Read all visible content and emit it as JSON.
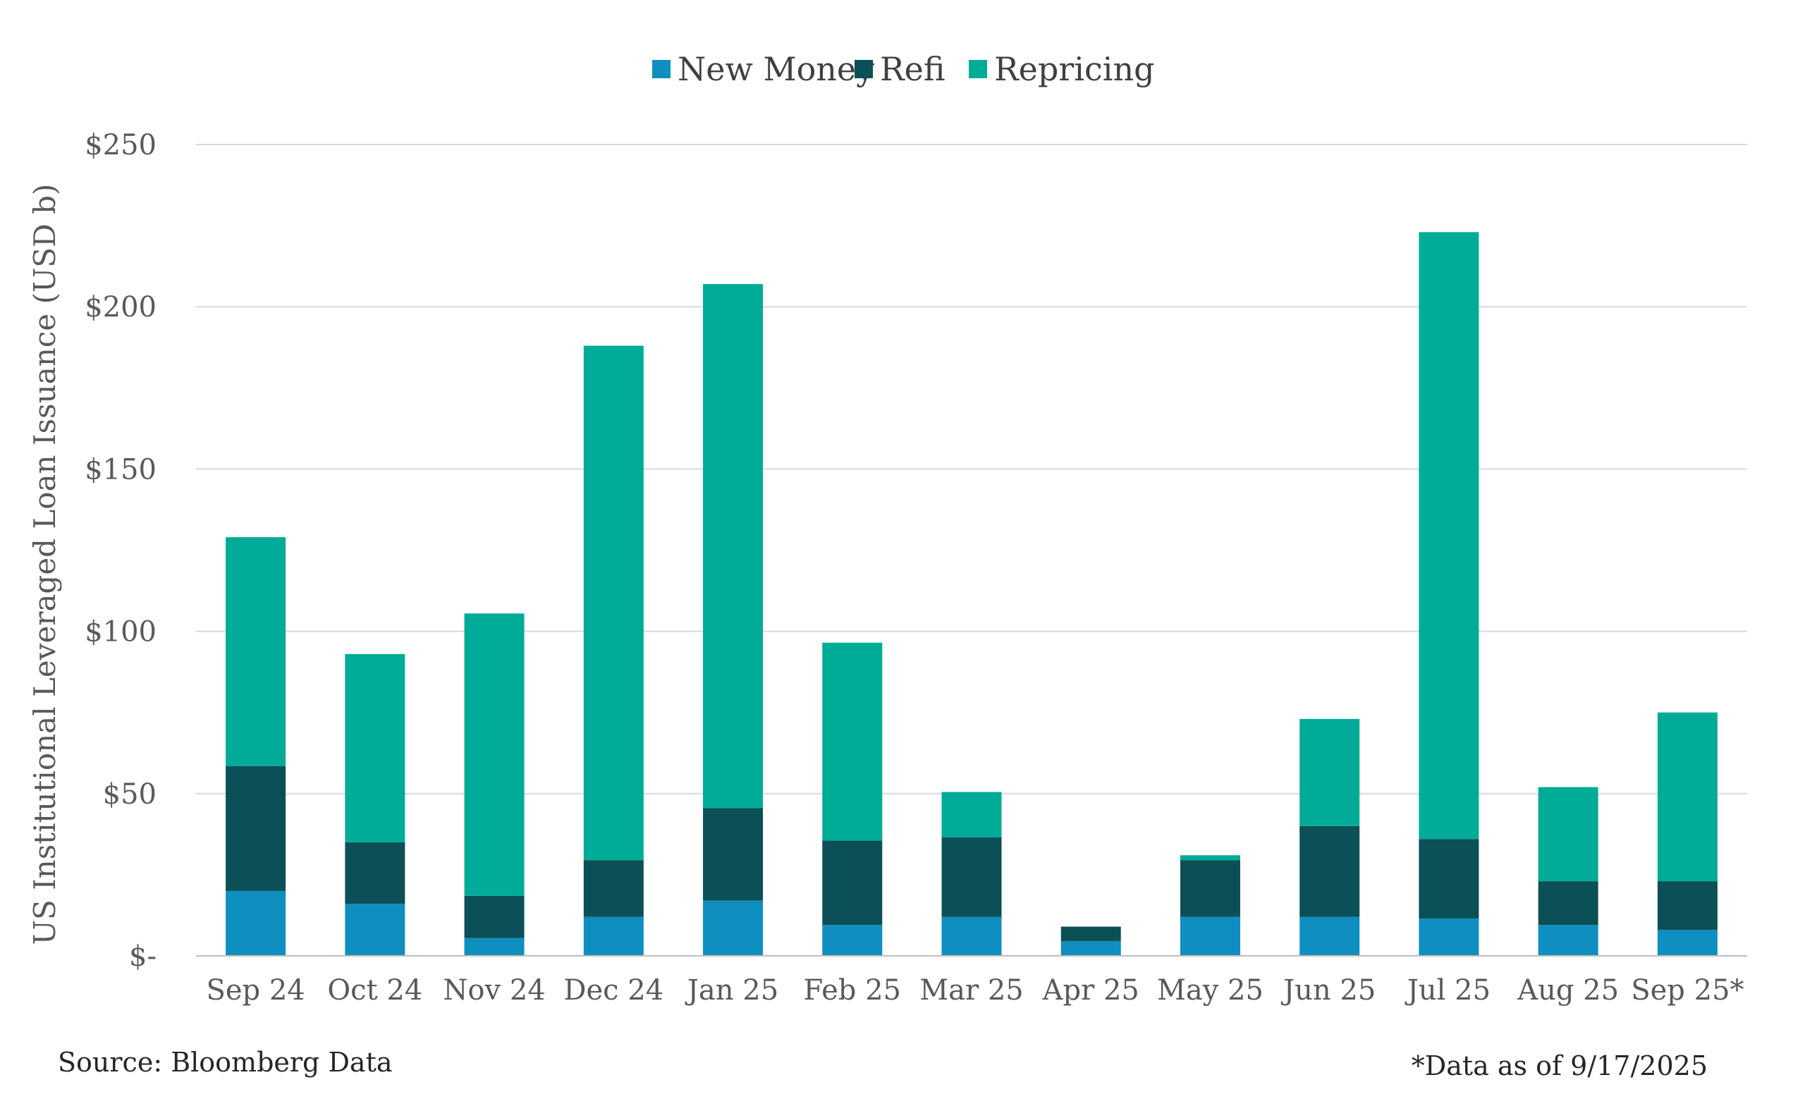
{
  "chart_data": {
    "type": "bar",
    "stacked": true,
    "title": "",
    "xlabel": "",
    "ylabel": "US Institutional Leveraged Loan Issuance (USD b)",
    "ylim": [
      0,
      250
    ],
    "yticks": [
      0,
      50,
      100,
      150,
      200,
      250
    ],
    "ytick_labels": [
      "$-",
      "$50",
      "$100",
      "$150",
      "$200",
      "$250"
    ],
    "grid": true,
    "legend_position": "top-center",
    "categories": [
      "Sep 24",
      "Oct 24",
      "Nov 24",
      "Dec 24",
      "Jan 25",
      "Feb 25",
      "Mar 25",
      "Apr 25",
      "May 25",
      "Jun 25",
      "Jul 25",
      "Aug 25",
      "Sep 25*"
    ],
    "series": [
      {
        "name": "New Money",
        "color": "#0f8ec0",
        "values": [
          20,
          16,
          5.5,
          12,
          17,
          9.5,
          12,
          4.5,
          12,
          12,
          11.5,
          9.5,
          8
        ]
      },
      {
        "name": "Refi",
        "color": "#0b5056",
        "values": [
          38.5,
          19,
          13,
          17.5,
          28.5,
          26,
          24.5,
          4.5,
          17.5,
          28,
          24.5,
          13.5,
          15
        ]
      },
      {
        "name": "Repricing",
        "color": "#00ac97",
        "values": [
          70.5,
          58,
          87,
          158.5,
          161.5,
          61,
          14,
          0,
          1.5,
          33,
          187,
          29,
          52
        ]
      }
    ]
  },
  "notes": {
    "source": "Source: Bloomberg Data",
    "as_of": "*Data as of 9/17/2025"
  }
}
